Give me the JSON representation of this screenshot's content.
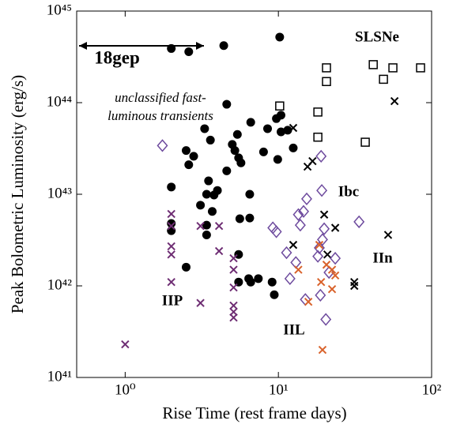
{
  "chart_data": {
    "type": "scatter",
    "xlabel": "Rise Time (rest frame days)",
    "ylabel": "Peak Bolometric Luminosity (erg/s)",
    "xscale": "log",
    "yscale": "log",
    "xlim": [
      0.5,
      100
    ],
    "ylim": [
      1e+41,
      1e+45
    ],
    "xticks": [
      {
        "value": 1,
        "label": "10⁰"
      },
      {
        "value": 10,
        "label": "10¹"
      },
      {
        "value": 100,
        "label": "10²"
      }
    ],
    "yticks": [
      {
        "value": 1e+41,
        "label": "10⁴¹"
      },
      {
        "value": 1e+42,
        "label": "10⁴²"
      },
      {
        "value": 1e+43,
        "label": "10⁴³"
      },
      {
        "value": 1e+44,
        "label": "10⁴⁴"
      },
      {
        "value": 1e+45,
        "label": "10⁴⁵"
      }
    ],
    "annotations": [
      {
        "text": "unclassified fast-"
      },
      {
        "text": "luminous transients"
      },
      {
        "text": "18gep"
      }
    ],
    "series": [
      {
        "color": "#000000",
        "marker": "circle",
        "x": [
          2.0,
          2.6,
          4.4,
          10.2,
          4.6,
          9.7,
          10.4,
          6.6,
          8.5,
          3.3,
          5.4,
          3.6,
          5.0,
          5.2,
          2.5,
          8.0,
          10.4,
          11.5,
          12.5,
          2.8,
          9.9,
          2.6,
          5.5,
          5.7,
          4.6,
          3.5,
          4.0,
          3.8,
          3.4,
          3.1,
          2.0,
          2.0,
          2.0,
          3.7,
          6.5,
          6.5,
          5.6,
          3.4,
          3.4,
          2.5,
          5.5,
          6.4,
          6.6,
          7.4,
          9.1,
          9.4,
          5.5
        ],
        "y": [
          3.9e+44,
          3.6e+44,
          4.2e+44,
          5.2e+44,
          9.6e+43,
          6.7e+43,
          7.3e+43,
          6.1e+43,
          5.2e+43,
          5.2e+43,
          4.5e+43,
          3.9e+43,
          3.5e+43,
          3e+43,
          3e+43,
          2.9e+43,
          4.8e+43,
          5e+43,
          3.2e+43,
          2.6e+43,
          2.4e+43,
          2.1e+43,
          2.5e+43,
          2.2e+43,
          1.8e+43,
          1.4e+43,
          1.1e+43,
          9.8e+42,
          1e+43,
          7.6e+42,
          1.2e+43,
          4.8e+42,
          4e+42,
          6.5e+42,
          1e+43,
          5.5e+42,
          5.4e+42,
          4.6e+42,
          3.6e+42,
          1.6e+42,
          2.2e+42,
          1.2e+42,
          1.1e+42,
          1.2e+42,
          1.1e+42,
          8e+41,
          1.1e+42
        ]
      },
      {
        "name": "SLSNe",
        "color": "#000000",
        "marker": "square",
        "x": [
          10.2,
          20.6,
          20.6,
          18.1,
          18.1,
          41.6,
          55.9,
          48.5,
          84.7,
          36.9
        ],
        "y": [
          9.2e+43,
          2.4e+44,
          1.7e+44,
          7.9e+43,
          4.2e+43,
          2.6e+44,
          2.4e+44,
          1.8e+44,
          2.4e+44,
          3.7e+43
        ]
      },
      {
        "name": "IIn",
        "color": "#000000",
        "marker": "x",
        "x": [
          57.3,
          12.5,
          15.5,
          16.7,
          19.9,
          23.5,
          12.5,
          20.9,
          31.3,
          31.3,
          52.0
        ],
        "y": [
          1.04e+44,
          5.3e+43,
          2e+43,
          2.3e+43,
          6e+42,
          4.3e+42,
          2.8e+42,
          2.2e+42,
          1.1e+42,
          1e+42,
          3.6e+42
        ]
      },
      {
        "name": "Ibc",
        "color": "#6e4b9e",
        "marker": "diamond",
        "x": [
          1.75,
          19.0,
          19.2,
          15.3,
          14.6,
          13.5,
          13.9,
          9.2,
          9.7,
          33.6,
          19.9,
          19.4,
          18.5,
          11.3,
          13.0,
          18.1,
          23.5,
          11.9,
          21.4,
          18.8,
          15.0,
          20.4
        ],
        "y": [
          3.4e+43,
          2.6e+43,
          1.1e+43,
          8.9e+42,
          6.5e+42,
          6e+42,
          4.6e+42,
          4.3e+42,
          3.9e+42,
          5e+42,
          4.2e+42,
          3.2e+42,
          2.6e+42,
          2.3e+42,
          1.8e+42,
          2.1e+42,
          2e+42,
          1.2e+42,
          1.4e+42,
          7.9e+41,
          7.1e+41,
          4.3e+41
        ]
      },
      {
        "name": "IIP",
        "color": "#6e2d73",
        "marker": "x",
        "x": [
          2.0,
          2.0,
          2.0,
          2.0,
          2.0,
          3.1,
          4.1,
          4.1,
          3.1,
          5.1,
          5.1,
          5.1,
          5.1,
          5.1,
          5.1,
          1.0
        ],
        "y": [
          6.1e+42,
          4.5e+42,
          2.7e+42,
          2.2e+42,
          1.1e+42,
          4.5e+42,
          4.5e+42,
          2.4e+42,
          6.5e+41,
          2e+42,
          1.5e+42,
          9.6e+41,
          6.1e+41,
          5.2e+41,
          4.5e+41,
          2.3e+41
        ]
      },
      {
        "name": "IIL",
        "color": "#d9622b",
        "marker": "x",
        "x": [
          18.5,
          20.6,
          22.4,
          23.5,
          13.5,
          19.0,
          15.7,
          22.4,
          19.4
        ],
        "y": [
          2.8e+42,
          1.7e+42,
          1.5e+42,
          1.3e+42,
          1.5e+42,
          1.1e+42,
          6.7e+41,
          9.2e+41,
          2e+41
        ]
      }
    ]
  }
}
